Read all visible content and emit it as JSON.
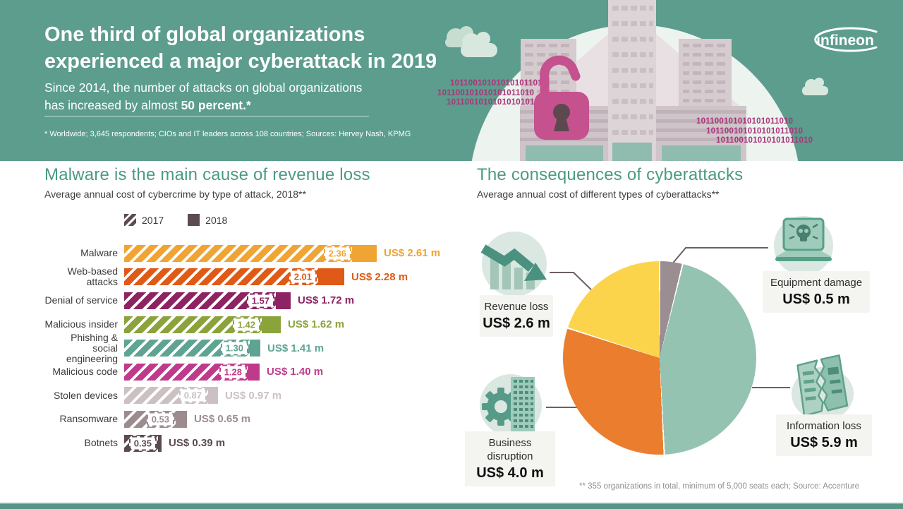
{
  "brand": {
    "logo_text": "infineon"
  },
  "header": {
    "title_line1": "One third of global organizations",
    "title_line2": "experienced a major cyberattack in 2019",
    "subtitle_line1": "Since 2014, the number of attacks on global organizations",
    "subtitle_line2_regular": "has increased by almost ",
    "subtitle_line2_bold": "50 percent.*",
    "footnote": "* Worldwide; 3,645 respondents; CIOs and IT leaders across 108 countries; Sources: Hervey Nash, KPMG",
    "background_color": "#5c9d8d",
    "lock_color": "#c5518f",
    "binary_color": "#a93579",
    "binary_left": [
      "101100101010101011010",
      "101100101010101011010",
      "10110010101010101011"
    ],
    "binary_right": [
      "101100101010101011010",
      "101100101010101011010",
      "101100101010101011010"
    ]
  },
  "chart_data": [
    {
      "type": "bar",
      "orientation": "horizontal",
      "title": "Malware is the main cause of revenue loss",
      "subtitle": "Average annual cost of cybercrime by type of attack, 2018**",
      "unit": "US$ million",
      "categories": [
        "Malware",
        "Web-based attacks",
        "Denial of service",
        "Malicious insider",
        "Phishing & social engineering",
        "Malicious code",
        "Stolen devices",
        "Ransomware",
        "Botnets"
      ],
      "series": [
        {
          "name": "2017",
          "values": [
            2.36,
            2.01,
            1.57,
            1.42,
            1.3,
            1.28,
            0.87,
            0.53,
            0.35
          ]
        },
        {
          "name": "2018",
          "values": [
            2.61,
            2.28,
            1.72,
            1.62,
            1.41,
            1.4,
            0.97,
            0.65,
            0.39
          ]
        }
      ],
      "value_labels": [
        "US$ 2.61 m",
        "US$ 2.28 m",
        "US$ 1.72 m",
        "US$ 1.62 m",
        "US$ 1.41 m",
        "US$ 1.40 m",
        "US$ 0.97 m",
        "US$ 0.65 m",
        "US$ 0.39 m"
      ],
      "colors": [
        "#f0a434",
        "#e05a17",
        "#8d2363",
        "#8ba33b",
        "#5fa493",
        "#c03a8c",
        "#cbc0c2",
        "#9c8c8f",
        "#5d4a50"
      ],
      "xlim": [
        0,
        2.8
      ],
      "legend_position": "top",
      "hatch_series": "2017"
    },
    {
      "type": "pie",
      "title": "The consequences of cyberattacks",
      "subtitle": "Average annual cost of different types of cyberattacks**",
      "total": 13.0,
      "start_angle_deg": 0,
      "direction": "clockwise",
      "slices": [
        {
          "label": "Equipment damage",
          "value": 0.5,
          "value_label": "US$ 0.5 m",
          "color": "#9b8e93",
          "icon": "laptop-skull-icon"
        },
        {
          "label": "Information loss",
          "value": 5.9,
          "value_label": "US$ 5.9 m",
          "color": "#95c3b1",
          "icon": "torn-document-icon"
        },
        {
          "label": "Business disruption",
          "value": 4.0,
          "value_label": "US$ 4.0 m",
          "color": "#ea7e2e",
          "icon": "gear-building-icon"
        },
        {
          "label": "Revenue loss",
          "value": 2.6,
          "value_label": "US$ 2.6 m",
          "color": "#fbd44c",
          "icon": "declining-chart-icon"
        }
      ],
      "footnote": "** 355 organizations in total, minimum of 5,000 seats each; Source: Accenture"
    }
  ]
}
